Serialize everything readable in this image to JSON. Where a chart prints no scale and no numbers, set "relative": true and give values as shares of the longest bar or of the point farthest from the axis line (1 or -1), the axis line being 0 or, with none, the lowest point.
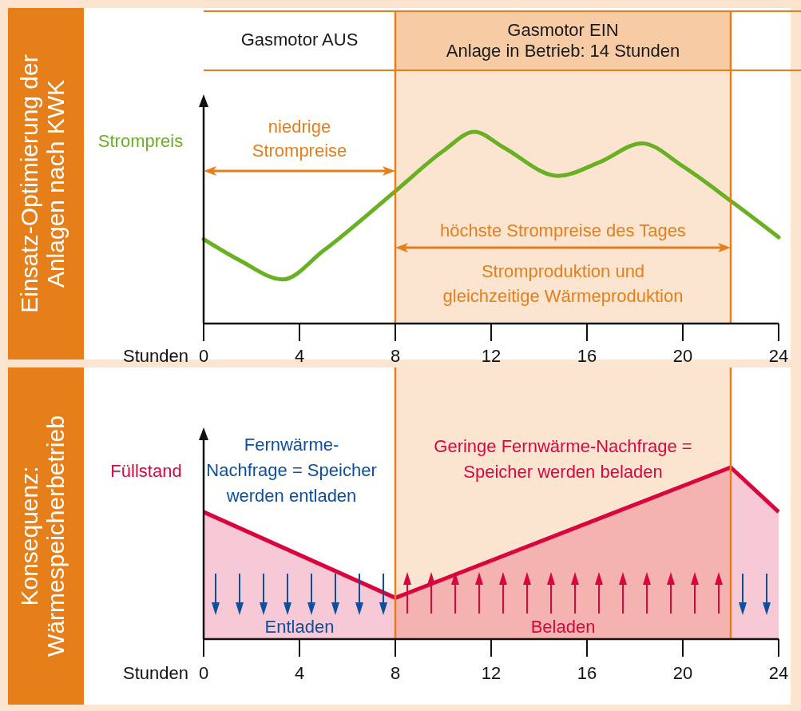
{
  "chart_data": [
    {
      "type": "line",
      "title": "Einsatz-Optimierung der\nAnlagen nach KWK",
      "ylabel": "Strompreis",
      "xlabel": "Stunden",
      "relative": true,
      "xlim": [
        0,
        24
      ],
      "xticks": [
        0,
        4,
        8,
        12,
        16,
        20,
        24
      ],
      "series": [
        {
          "color": "#6ab023",
          "x": [
            0,
            1.5,
            3.3,
            5,
            8,
            10,
            11.3,
            12.5,
            14.8,
            16.5,
            18.3,
            20,
            22,
            24
          ],
          "values": [
            0.44,
            0.33,
            0.23,
            0.38,
            0.69,
            0.9,
            1,
            0.92,
            0.77,
            0.84,
            0.94,
            0.82,
            0.64,
            0.45
          ]
        }
      ],
      "bands": [
        {
          "axis": "x",
          "from": 8,
          "to": 22,
          "label": "Gasmotor EIN\nAnlage in Betrieb: 14 Stunden",
          "color": "#f7cba4"
        }
      ],
      "ref_lines": [
        {
          "axis": "x",
          "value": 8,
          "color": "#e67e1a"
        },
        {
          "axis": "x",
          "value": 22,
          "color": "#e67e1a"
        }
      ],
      "annotations": [
        "Gasmotor AUS",
        "niedrige\nStrompreise",
        "höchste Strompreise des Tages",
        "Stromproduktion und\ngleichzeitige Wärmeproduktion"
      ]
    },
    {
      "type": "area",
      "title": "Konsequenz:\nWärmespeicherbetrieb",
      "ylabel": "Füllstand",
      "xlabel": "Stunden",
      "relative": true,
      "xlim": [
        0,
        24
      ],
      "xticks": [
        0,
        4,
        8,
        12,
        16,
        20,
        24
      ],
      "series": [
        {
          "color": "#d9063e",
          "x": [
            0,
            8,
            22,
            24
          ],
          "values": [
            0.74,
            0.24,
            1,
            0.74
          ]
        }
      ],
      "bands": [
        {
          "axis": "x",
          "from": 8,
          "to": 22,
          "color": "#f7cba4"
        }
      ],
      "ref_lines": [
        {
          "axis": "x",
          "value": 8,
          "color": "#e67e1a"
        },
        {
          "axis": "x",
          "value": 22,
          "color": "#e67e1a"
        }
      ],
      "annotations": [
        "Fernwärme-\nNachfrage = Speicher\nwerden entladen",
        "Geringe Fernwärme-Nachfrage =\nSpeicher werden beladen",
        "Entladen",
        "Beladen"
      ]
    }
  ]
}
